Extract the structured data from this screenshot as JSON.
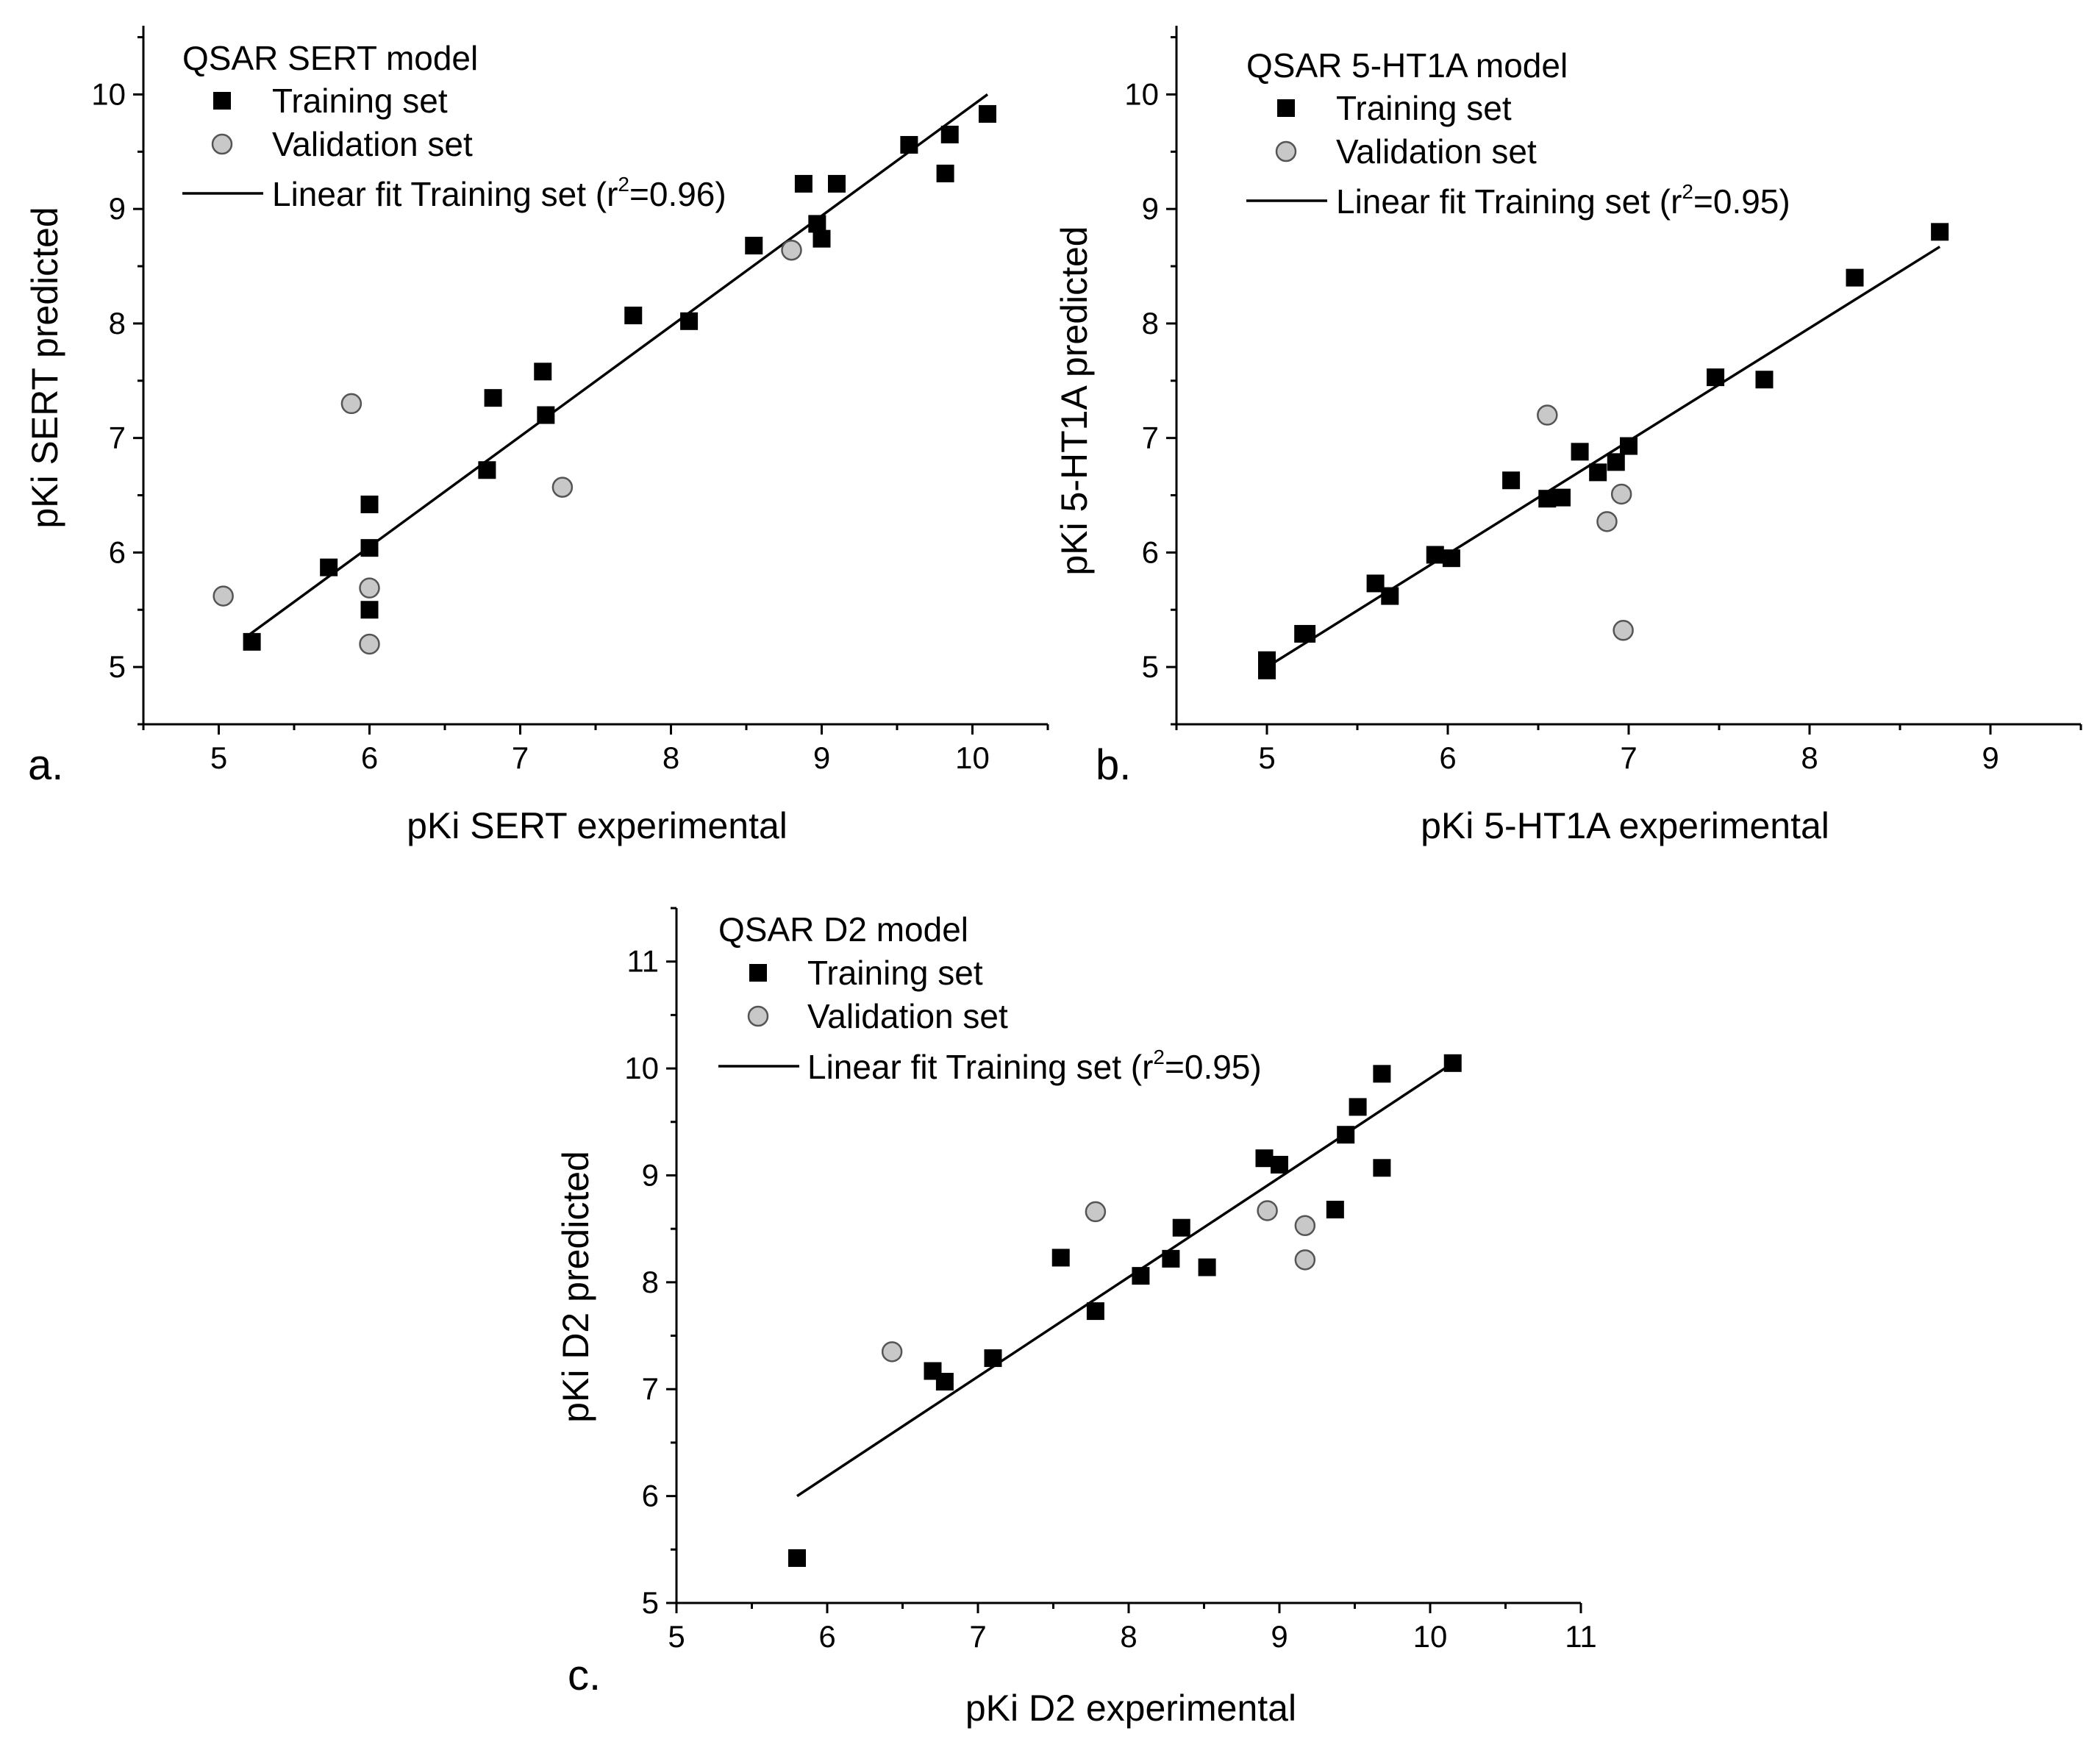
{
  "chart_data": [
    {
      "type": "scatter",
      "panel_label": "a.",
      "title": "QSAR SERT model",
      "xlabel": "pKi SERT experimental",
      "ylabel": "pKi SERT predicted",
      "xlim": [
        4.5,
        10.5
      ],
      "ylim": [
        4.5,
        10.6
      ],
      "xticks": [
        5,
        6,
        7,
        8,
        9,
        10
      ],
      "yticks": [
        5,
        6,
        7,
        8,
        9,
        10
      ],
      "legend": {
        "training_label": "Training set",
        "validation_label": "Validation set",
        "fit_prefix": "Linear fit Training set (r",
        "fit_sup": "2",
        "fit_suffix": "=0.96)",
        "position": "top-left"
      },
      "fit_line": {
        "x": [
          5.2,
          10.1
        ],
        "y": [
          5.28,
          10.0
        ]
      },
      "series": [
        {
          "name": "Training set",
          "x": [
            5.22,
            5.73,
            6.0,
            6.0,
            6.0,
            6.78,
            6.82,
            7.15,
            7.17,
            7.75,
            8.12,
            8.55,
            8.88,
            8.97,
            9.0,
            9.1,
            9.58,
            9.82,
            9.85,
            10.1
          ],
          "y": [
            5.22,
            5.87,
            6.42,
            6.04,
            5.5,
            6.72,
            7.35,
            7.58,
            7.2,
            8.07,
            8.02,
            8.68,
            9.22,
            8.87,
            8.74,
            9.22,
            9.56,
            9.31,
            9.65,
            9.83
          ]
        },
        {
          "name": "Validation set",
          "x": [
            5.03,
            5.88,
            6.0,
            6.0,
            7.28,
            8.8
          ],
          "y": [
            5.62,
            7.3,
            5.69,
            5.2,
            6.57,
            8.64
          ]
        }
      ]
    },
    {
      "type": "scatter",
      "panel_label": "b.",
      "title": "QSAR 5-HT1A model",
      "xlabel": "pKi 5-HT1A experimental",
      "ylabel": "pKi 5-HT1A predicted",
      "xlim": [
        4.5,
        9.5
      ],
      "ylim": [
        4.5,
        10.6
      ],
      "xticks": [
        5,
        6,
        7,
        8,
        9
      ],
      "yticks": [
        5,
        6,
        7,
        8,
        9,
        10
      ],
      "legend": {
        "training_label": "Training set",
        "validation_label": "Validation set",
        "fit_prefix": "Linear fit Training set (r",
        "fit_sup": "2",
        "fit_suffix": "=0.95)",
        "position": "top-left"
      },
      "fit_line": {
        "x": [
          5.0,
          8.72
        ],
        "y": [
          5.0,
          8.67
        ]
      },
      "series": [
        {
          "name": "Training set",
          "x": [
            5.0,
            5.0,
            5.2,
            5.22,
            5.6,
            5.68,
            5.93,
            6.02,
            6.35,
            6.55,
            6.63,
            6.73,
            6.83,
            6.93,
            7.0,
            7.48,
            7.75,
            8.25,
            8.72
          ],
          "y": [
            5.06,
            4.97,
            5.29,
            5.29,
            5.73,
            5.62,
            5.98,
            5.95,
            6.63,
            6.47,
            6.48,
            6.88,
            6.7,
            6.79,
            6.93,
            7.53,
            7.51,
            8.4,
            8.8
          ]
        },
        {
          "name": "Validation set",
          "x": [
            6.55,
            6.88,
            6.96,
            6.97
          ],
          "y": [
            7.2,
            6.27,
            6.51,
            5.32
          ]
        }
      ]
    },
    {
      "type": "scatter",
      "panel_label": "c.",
      "title": "QSAR D2 model",
      "xlabel": "pKi D2 experimental",
      "ylabel": "pKi D2 predicted",
      "xlim": [
        5,
        11
      ],
      "ylim": [
        5,
        11.5
      ],
      "xticks": [
        5,
        6,
        7,
        8,
        9,
        10,
        11
      ],
      "yticks": [
        5,
        6,
        7,
        8,
        9,
        10,
        11
      ],
      "legend": {
        "training_label": "Training set",
        "validation_label": "Validation set",
        "fit_prefix": "Linear fit Training set (r",
        "fit_sup": "2",
        "fit_suffix": "=0.95)",
        "position": "top-left"
      },
      "fit_line": {
        "x": [
          5.8,
          10.15
        ],
        "y": [
          6.0,
          10.05
        ]
      },
      "series": [
        {
          "name": "Training set",
          "x": [
            5.8,
            6.7,
            6.78,
            7.1,
            7.55,
            7.78,
            8.08,
            8.28,
            8.35,
            8.52,
            8.9,
            9.0,
            9.37,
            9.44,
            9.52,
            9.68,
            9.68,
            10.15
          ],
          "y": [
            5.42,
            7.17,
            7.07,
            7.29,
            8.23,
            7.73,
            8.06,
            8.22,
            8.51,
            8.14,
            9.16,
            9.1,
            8.68,
            9.38,
            9.64,
            9.07,
            9.95,
            10.05
          ]
        },
        {
          "name": "Validation set",
          "x": [
            6.43,
            7.78,
            8.92,
            9.17,
            9.17
          ],
          "y": [
            7.35,
            8.66,
            8.67,
            8.53,
            8.21
          ]
        }
      ]
    }
  ]
}
